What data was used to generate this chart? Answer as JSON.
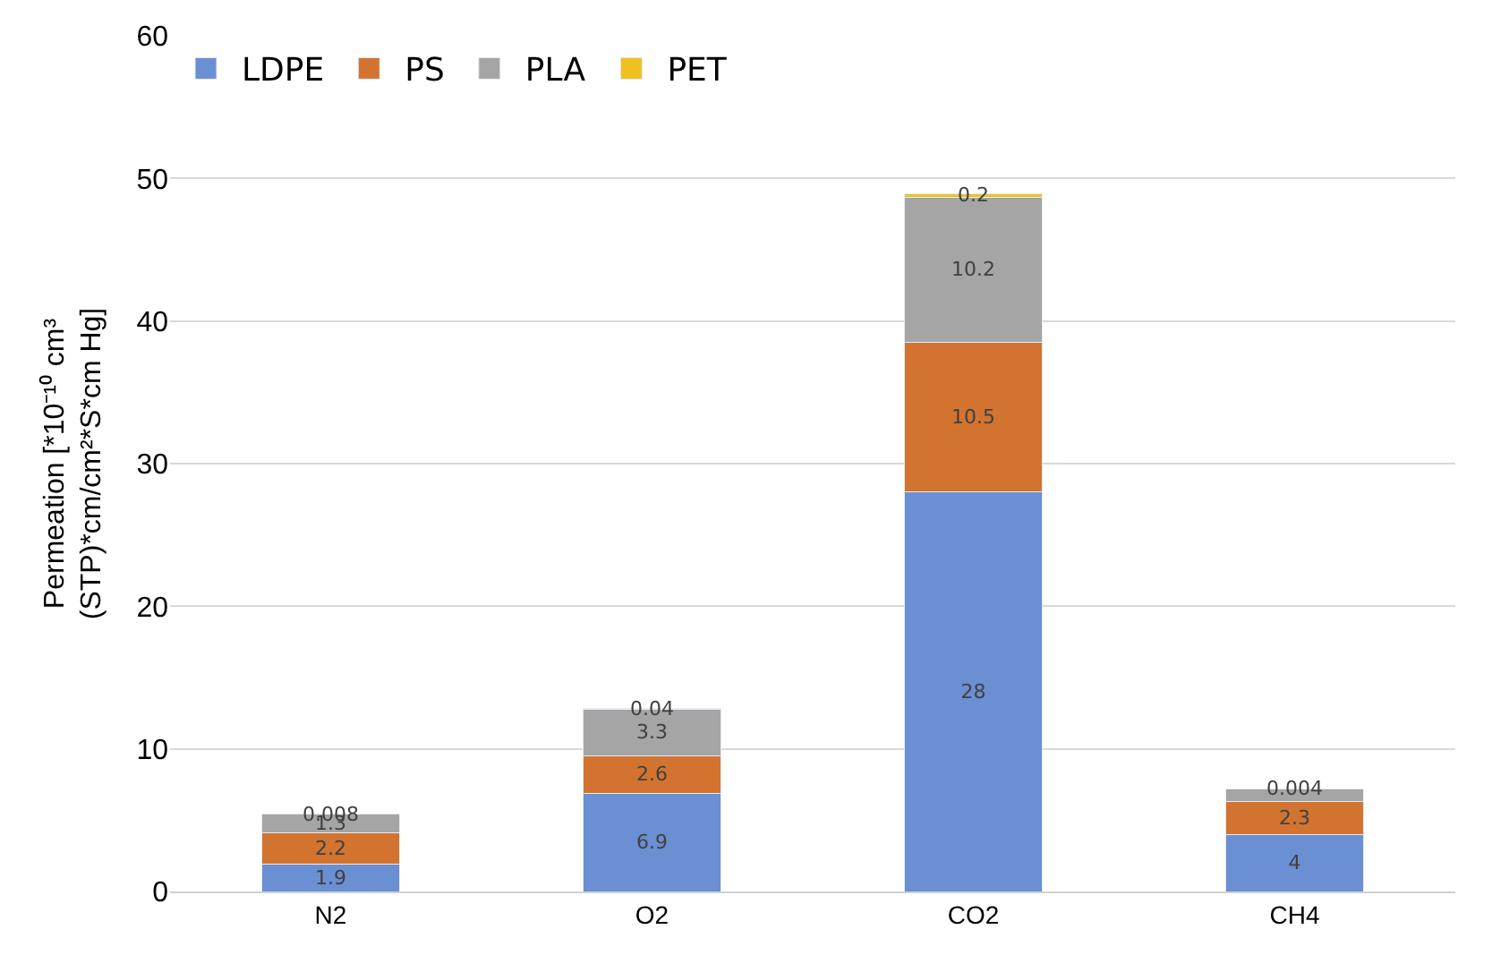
{
  "chart_data": {
    "type": "bar",
    "stacked": true,
    "ylabel": "Permeation [*10⁻¹⁰ cm³\n(STP)*cm/cm²*S*cm Hg]",
    "categories": [
      "N2",
      "O2",
      "CO2",
      "CH4"
    ],
    "series": [
      {
        "name": "LDPE",
        "color": "#6a8fd2",
        "values": [
          1.9,
          6.9,
          28,
          4
        ],
        "value_labels": [
          "1.9",
          "6.9",
          "28",
          "4"
        ]
      },
      {
        "name": "PS",
        "color": "#d2742f",
        "values": [
          2.2,
          2.6,
          10.5,
          2.3
        ],
        "value_labels": [
          "2.2",
          "2.6",
          "10.5",
          "2.3"
        ]
      },
      {
        "name": "PLA",
        "color": "#a5a5a5",
        "values": [
          1.3,
          3.3,
          10.2,
          0.9
        ],
        "value_labels": [
          "1.3",
          "3.3",
          "10.2",
          null
        ]
      },
      {
        "name": "PET",
        "color": "#f0c020",
        "values": [
          0.008,
          0.04,
          0.2,
          0.004
        ],
        "value_labels": [
          "0.008",
          "0.04",
          "0.2",
          "0.004"
        ]
      }
    ],
    "ylim": [
      0,
      60
    ],
    "yticks": [
      0,
      10,
      20,
      30,
      40,
      50,
      60
    ],
    "grid": "y",
    "legend": "top left"
  }
}
